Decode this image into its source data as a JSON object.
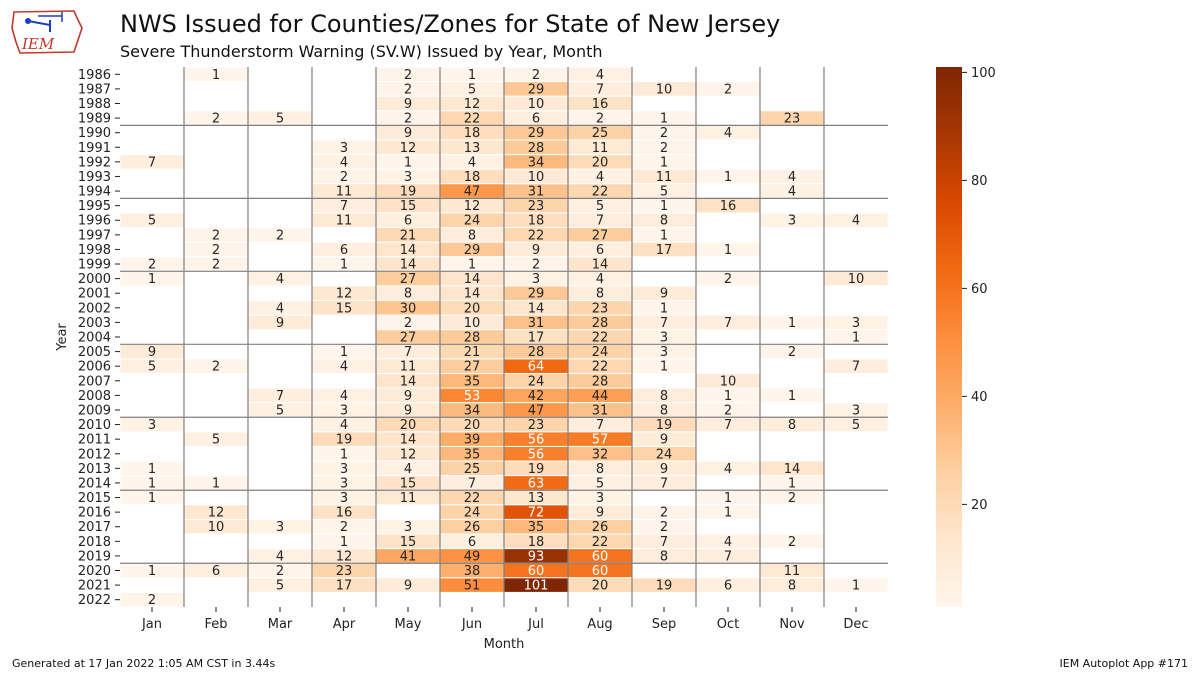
{
  "header": {
    "title": "NWS Issued for Counties/Zones for State of New Jersey",
    "subtitle": "Severe Thunderstorm Warning (SV.W) Issued by Year, Month",
    "logo_text": "IEM"
  },
  "footer": {
    "left": "Generated at 17 Jan 2022 1:05 AM CST in 3.44s",
    "right": "IEM Autoplot App #171"
  },
  "colors": {
    "cmap": [
      "#fff5eb",
      "#fee6ce",
      "#fdd0a2",
      "#fdae6b",
      "#fd8d3c",
      "#f16913",
      "#d94801",
      "#a63603",
      "#7f2704"
    ],
    "grid_lines": "#808080",
    "logo": "#c0392b"
  },
  "chart_data": {
    "type": "heatmap",
    "xlabel": "Month",
    "ylabel": "Year",
    "months": [
      "Jan",
      "Feb",
      "Mar",
      "Apr",
      "May",
      "Jun",
      "Jul",
      "Aug",
      "Sep",
      "Oct",
      "Nov",
      "Dec"
    ],
    "colorbar": {
      "min": 1,
      "max": 101,
      "ticks": [
        20,
        40,
        60,
        80,
        100
      ]
    },
    "rows": [
      {
        "year": "1986",
        "values": [
          null,
          1,
          null,
          null,
          2,
          1,
          2,
          4,
          null,
          null,
          null,
          null
        ]
      },
      {
        "year": "1987",
        "values": [
          null,
          null,
          null,
          null,
          2,
          5,
          29,
          7,
          10,
          2,
          null,
          null
        ]
      },
      {
        "year": "1988",
        "values": [
          null,
          null,
          null,
          null,
          9,
          12,
          10,
          16,
          null,
          null,
          null,
          null
        ]
      },
      {
        "year": "1989",
        "values": [
          null,
          2,
          5,
          null,
          2,
          22,
          6,
          2,
          1,
          null,
          23,
          null
        ]
      },
      {
        "year": "1990",
        "values": [
          null,
          null,
          null,
          null,
          9,
          18,
          29,
          25,
          2,
          4,
          null,
          null
        ]
      },
      {
        "year": "1991",
        "values": [
          null,
          null,
          null,
          3,
          12,
          13,
          28,
          11,
          2,
          null,
          null,
          null
        ]
      },
      {
        "year": "1992",
        "values": [
          7,
          null,
          null,
          4,
          1,
          4,
          34,
          20,
          1,
          null,
          null,
          null
        ]
      },
      {
        "year": "1993",
        "values": [
          null,
          null,
          null,
          2,
          3,
          18,
          10,
          4,
          11,
          1,
          4,
          null
        ]
      },
      {
        "year": "1994",
        "values": [
          null,
          null,
          null,
          11,
          19,
          47,
          31,
          22,
          5,
          null,
          4,
          null
        ]
      },
      {
        "year": "1995",
        "values": [
          null,
          null,
          null,
          7,
          15,
          12,
          23,
          5,
          1,
          16,
          null,
          null
        ]
      },
      {
        "year": "1996",
        "values": [
          5,
          null,
          null,
          11,
          6,
          24,
          18,
          7,
          8,
          null,
          3,
          4
        ]
      },
      {
        "year": "1997",
        "values": [
          null,
          2,
          2,
          null,
          21,
          8,
          22,
          27,
          1,
          null,
          null,
          null
        ]
      },
      {
        "year": "1998",
        "values": [
          null,
          2,
          null,
          6,
          14,
          29,
          9,
          6,
          17,
          1,
          null,
          null
        ]
      },
      {
        "year": "1999",
        "values": [
          2,
          2,
          null,
          1,
          14,
          1,
          2,
          14,
          null,
          null,
          null,
          null
        ]
      },
      {
        "year": "2000",
        "values": [
          1,
          null,
          4,
          null,
          27,
          14,
          3,
          4,
          null,
          2,
          null,
          10
        ]
      },
      {
        "year": "2001",
        "values": [
          null,
          null,
          null,
          12,
          8,
          14,
          29,
          8,
          9,
          null,
          null,
          null
        ]
      },
      {
        "year": "2002",
        "values": [
          null,
          null,
          4,
          15,
          30,
          20,
          14,
          23,
          1,
          null,
          null,
          null
        ]
      },
      {
        "year": "2003",
        "values": [
          null,
          null,
          9,
          null,
          2,
          10,
          31,
          28,
          7,
          7,
          1,
          3
        ]
      },
      {
        "year": "2004",
        "values": [
          null,
          null,
          null,
          null,
          27,
          28,
          17,
          22,
          3,
          null,
          null,
          1
        ]
      },
      {
        "year": "2005",
        "values": [
          9,
          null,
          null,
          1,
          7,
          21,
          28,
          24,
          3,
          null,
          2,
          null
        ]
      },
      {
        "year": "2006",
        "values": [
          5,
          2,
          null,
          4,
          11,
          27,
          64,
          22,
          1,
          null,
          null,
          7
        ]
      },
      {
        "year": "2007",
        "values": [
          null,
          null,
          null,
          null,
          14,
          35,
          24,
          28,
          null,
          10,
          null,
          null
        ]
      },
      {
        "year": "2008",
        "values": [
          null,
          null,
          7,
          4,
          9,
          53,
          42,
          44,
          8,
          1,
          1,
          null
        ]
      },
      {
        "year": "2009",
        "values": [
          null,
          null,
          5,
          3,
          9,
          34,
          47,
          31,
          8,
          2,
          null,
          3
        ]
      },
      {
        "year": "2010",
        "values": [
          3,
          null,
          null,
          4,
          20,
          20,
          23,
          7,
          19,
          7,
          8,
          5
        ]
      },
      {
        "year": "2011",
        "values": [
          null,
          5,
          null,
          19,
          14,
          39,
          56,
          57,
          9,
          null,
          null,
          null
        ]
      },
      {
        "year": "2012",
        "values": [
          null,
          null,
          null,
          1,
          12,
          35,
          56,
          32,
          24,
          null,
          null,
          null
        ]
      },
      {
        "year": "2013",
        "values": [
          1,
          null,
          null,
          3,
          4,
          25,
          19,
          8,
          9,
          4,
          14,
          null
        ]
      },
      {
        "year": "2014",
        "values": [
          1,
          1,
          null,
          3,
          15,
          7,
          63,
          5,
          7,
          null,
          1,
          null
        ]
      },
      {
        "year": "2015",
        "values": [
          1,
          null,
          null,
          3,
          11,
          22,
          13,
          3,
          null,
          1,
          2,
          null
        ]
      },
      {
        "year": "2016",
        "values": [
          null,
          12,
          null,
          16,
          null,
          24,
          72,
          9,
          2,
          1,
          null,
          null
        ]
      },
      {
        "year": "2017",
        "values": [
          null,
          10,
          3,
          2,
          3,
          26,
          35,
          26,
          2,
          null,
          null,
          null
        ]
      },
      {
        "year": "2018",
        "values": [
          null,
          null,
          null,
          1,
          15,
          6,
          18,
          22,
          7,
          4,
          2,
          null
        ]
      },
      {
        "year": "2019",
        "values": [
          null,
          null,
          4,
          12,
          41,
          49,
          93,
          60,
          8,
          7,
          null,
          null
        ]
      },
      {
        "year": "2020",
        "values": [
          1,
          6,
          2,
          23,
          null,
          38,
          60,
          60,
          null,
          null,
          11,
          null
        ]
      },
      {
        "year": "2021",
        "values": [
          null,
          null,
          5,
          17,
          9,
          51,
          101,
          20,
          19,
          6,
          8,
          1
        ]
      },
      {
        "year": "2022",
        "values": [
          2,
          null,
          null,
          null,
          null,
          null,
          null,
          null,
          null,
          null,
          null,
          null
        ]
      }
    ]
  }
}
